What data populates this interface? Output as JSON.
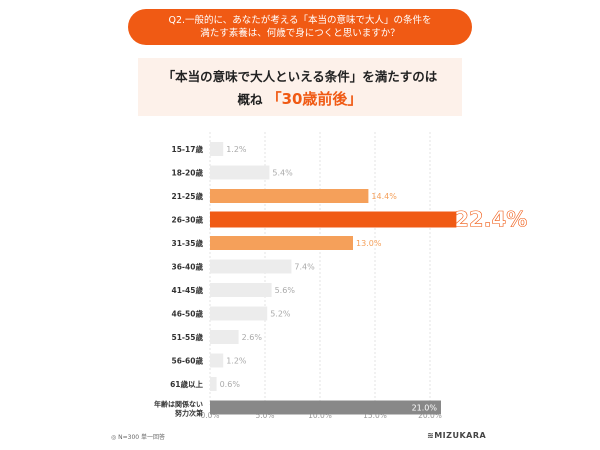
{
  "question": {
    "line1": "Q2.一般的に、あなたが考える「本当の意味で大人」の条件を",
    "line2": "満たす素養は、何歳で身につくと思いますか？"
  },
  "headline": {
    "line1": "「本当の意味で大人といえる条件」を満たすのは",
    "prefix": "概ね",
    "highlight": "「30歳前後」"
  },
  "footer": {
    "note": "◎ N=300 単一回答",
    "logo": "≋MIZUKARA"
  },
  "colors": {
    "accent": "#f05a14",
    "accent_light": "#f5a05a",
    "bar_default": "#ececec",
    "bar_dark": "#888888",
    "label_default": "#aaaaaa",
    "label_on_dark": "#ffffff"
  },
  "chart_data": {
    "type": "bar",
    "orientation": "horizontal",
    "categories": [
      "15-17歳",
      "18-20歳",
      "21-25歳",
      "26-30歳",
      "31-35歳",
      "36-40歳",
      "41-45歳",
      "46-50歳",
      "51-55歳",
      "56-60歳",
      "61歳以上",
      "年齢は関係ない 努力次第"
    ],
    "values": [
      1.2,
      5.4,
      14.4,
      22.4,
      13.0,
      7.4,
      5.6,
      5.2,
      2.6,
      1.2,
      0.6,
      21.0
    ],
    "value_labels": [
      "1.2%",
      "5.4%",
      "14.4%",
      "22.4%",
      "13.0%",
      "7.4%",
      "5.6%",
      "5.2%",
      "2.6%",
      "1.2%",
      "0.6%",
      "21.0%"
    ],
    "bar_styles": [
      "default",
      "default",
      "accent_light",
      "accent",
      "accent_light",
      "default",
      "default",
      "default",
      "default",
      "default",
      "default",
      "dark"
    ],
    "x_ticks": [
      "0.0%",
      "5.0%",
      "10.0%",
      "15.0%",
      "20.0%"
    ],
    "xlim": [
      0,
      20
    ],
    "grid": "vertical dashed"
  }
}
